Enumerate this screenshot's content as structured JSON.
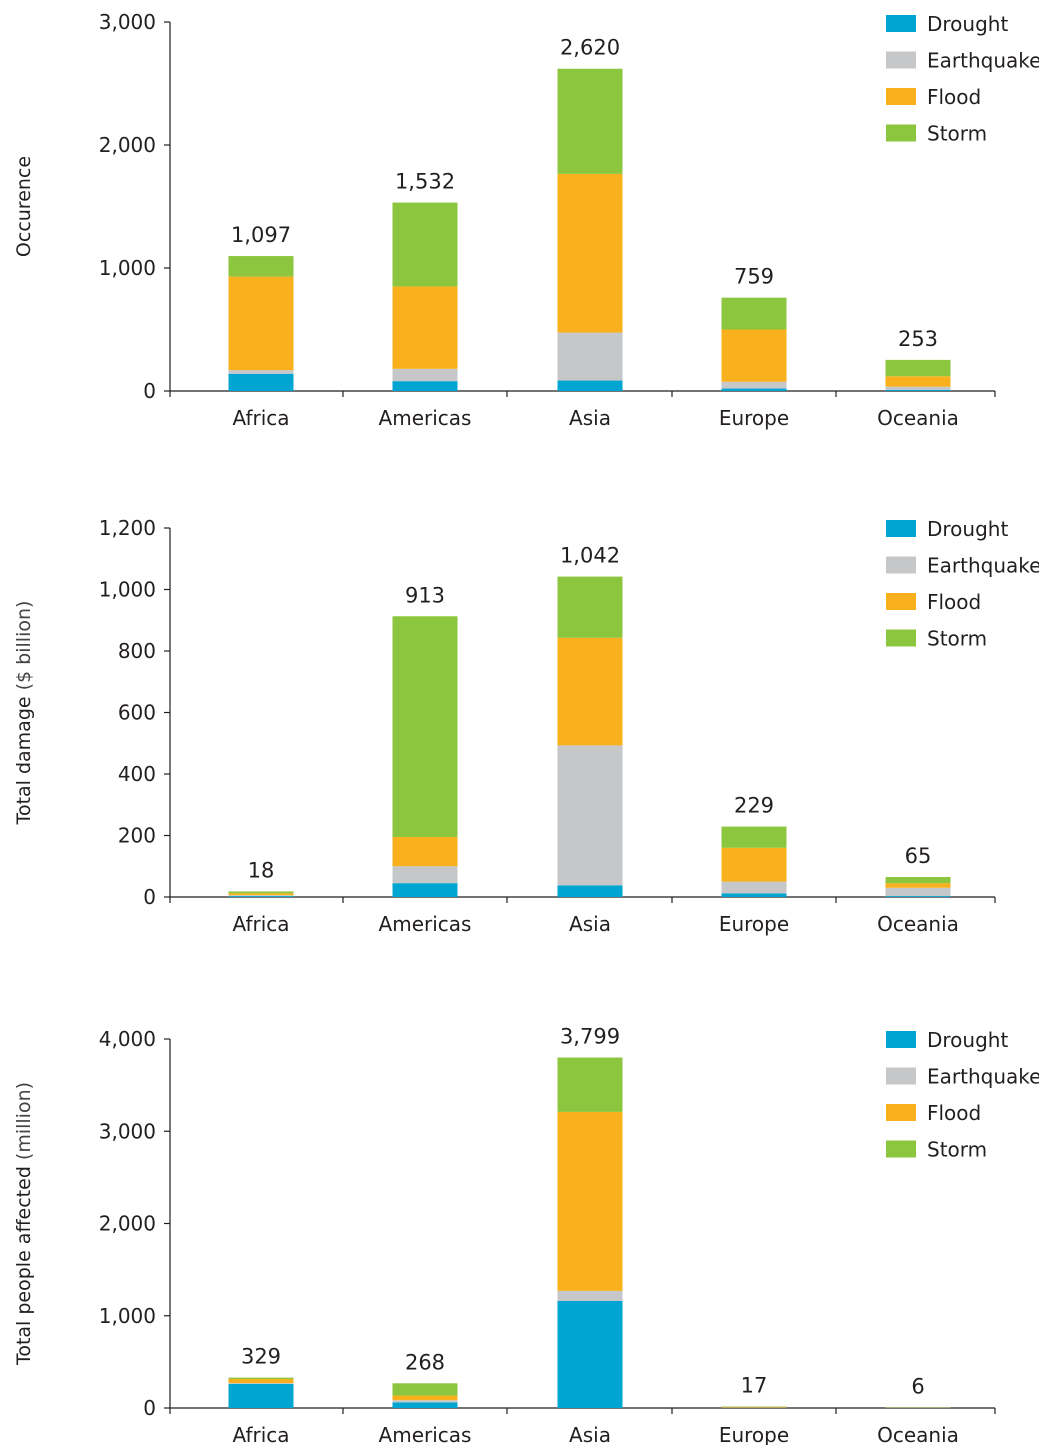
{
  "legend_labels": [
    "Drought",
    "Earthquake",
    "Flood",
    "Storm"
  ],
  "colors": {
    "Drought": "#00a5d2",
    "Earthquake": "#c6c7c9",
    "Flood": "#f8b11c",
    "Storm": "#8cc63e",
    "axis": "#231f20"
  },
  "chart_data": [
    {
      "type": "bar",
      "stacked": true,
      "categories": [
        "Africa",
        "Americas",
        "Asia",
        "Europe",
        "Oceania"
      ],
      "ylabel": "Occurence",
      "ylabel_bold": "Occurence",
      "ylabel_rest": "",
      "ylim": [
        0,
        3000
      ],
      "yticks": [
        0,
        1000,
        2000,
        3000
      ],
      "ytick_labels": [
        "0",
        "1,000",
        "2,000",
        "3,000"
      ],
      "totals": [
        1097,
        1532,
        2620,
        759,
        253
      ],
      "total_labels": [
        "1,097",
        "1,532",
        "2,620",
        "759",
        "253"
      ],
      "legend_position": "top-right",
      "series": [
        {
          "name": "Drought",
          "values": [
            140,
            80,
            85,
            20,
            10
          ]
        },
        {
          "name": "Earthquake",
          "values": [
            30,
            100,
            390,
            55,
            25
          ]
        },
        {
          "name": "Flood",
          "values": [
            760,
            670,
            1290,
            425,
            85
          ]
        },
        {
          "name": "Storm",
          "values": [
            167,
            682,
            855,
            259,
            133
          ]
        }
      ]
    },
    {
      "type": "bar",
      "stacked": true,
      "categories": [
        "Africa",
        "Americas",
        "Asia",
        "Europe",
        "Oceania"
      ],
      "ylabel": "Total damage ($ billion)",
      "ylabel_bold": "Total damage",
      "ylabel_rest": " ($ billion)",
      "ylim": [
        0,
        1200
      ],
      "yticks": [
        0,
        200,
        400,
        600,
        800,
        1000,
        1200
      ],
      "ytick_labels": [
        "0",
        "200",
        "400",
        "600",
        "800",
        "1,000",
        "1,200"
      ],
      "totals": [
        18,
        913,
        1042,
        229,
        65
      ],
      "total_labels": [
        "18",
        "913",
        "1,042",
        "229",
        "65"
      ],
      "legend_position": "top-right",
      "series": [
        {
          "name": "Drought",
          "values": [
            3,
            45,
            38,
            12,
            3
          ]
        },
        {
          "name": "Earthquake",
          "values": [
            3,
            55,
            455,
            38,
            27
          ]
        },
        {
          "name": "Flood",
          "values": [
            6,
            95,
            350,
            110,
            15
          ]
        },
        {
          "name": "Storm",
          "values": [
            6,
            718,
            199,
            69,
            20
          ]
        }
      ]
    },
    {
      "type": "bar",
      "stacked": true,
      "categories": [
        "Africa",
        "Americas",
        "Asia",
        "Europe",
        "Oceania"
      ],
      "ylabel": "Total people affected (million)",
      "ylabel_bold": "Total people affected",
      "ylabel_rest": " (million)",
      "ylim": [
        0,
        4000
      ],
      "yticks": [
        0,
        1000,
        2000,
        3000,
        4000
      ],
      "ytick_labels": [
        "0",
        "1,000",
        "2,000",
        "3,000",
        "4,000"
      ],
      "totals": [
        329,
        268,
        3799,
        17,
        6
      ],
      "total_labels": [
        "329",
        "268",
        "3,799",
        "17",
        "6"
      ],
      "legend_position": "top-right",
      "series": [
        {
          "name": "Drought",
          "values": [
            260,
            60,
            1160,
            2,
            1
          ]
        },
        {
          "name": "Earthquake",
          "values": [
            10,
            25,
            110,
            3,
            1
          ]
        },
        {
          "name": "Flood",
          "values": [
            44,
            50,
            1940,
            8,
            2
          ]
        },
        {
          "name": "Storm",
          "values": [
            15,
            133,
            589,
            4,
            2
          ]
        }
      ]
    }
  ]
}
